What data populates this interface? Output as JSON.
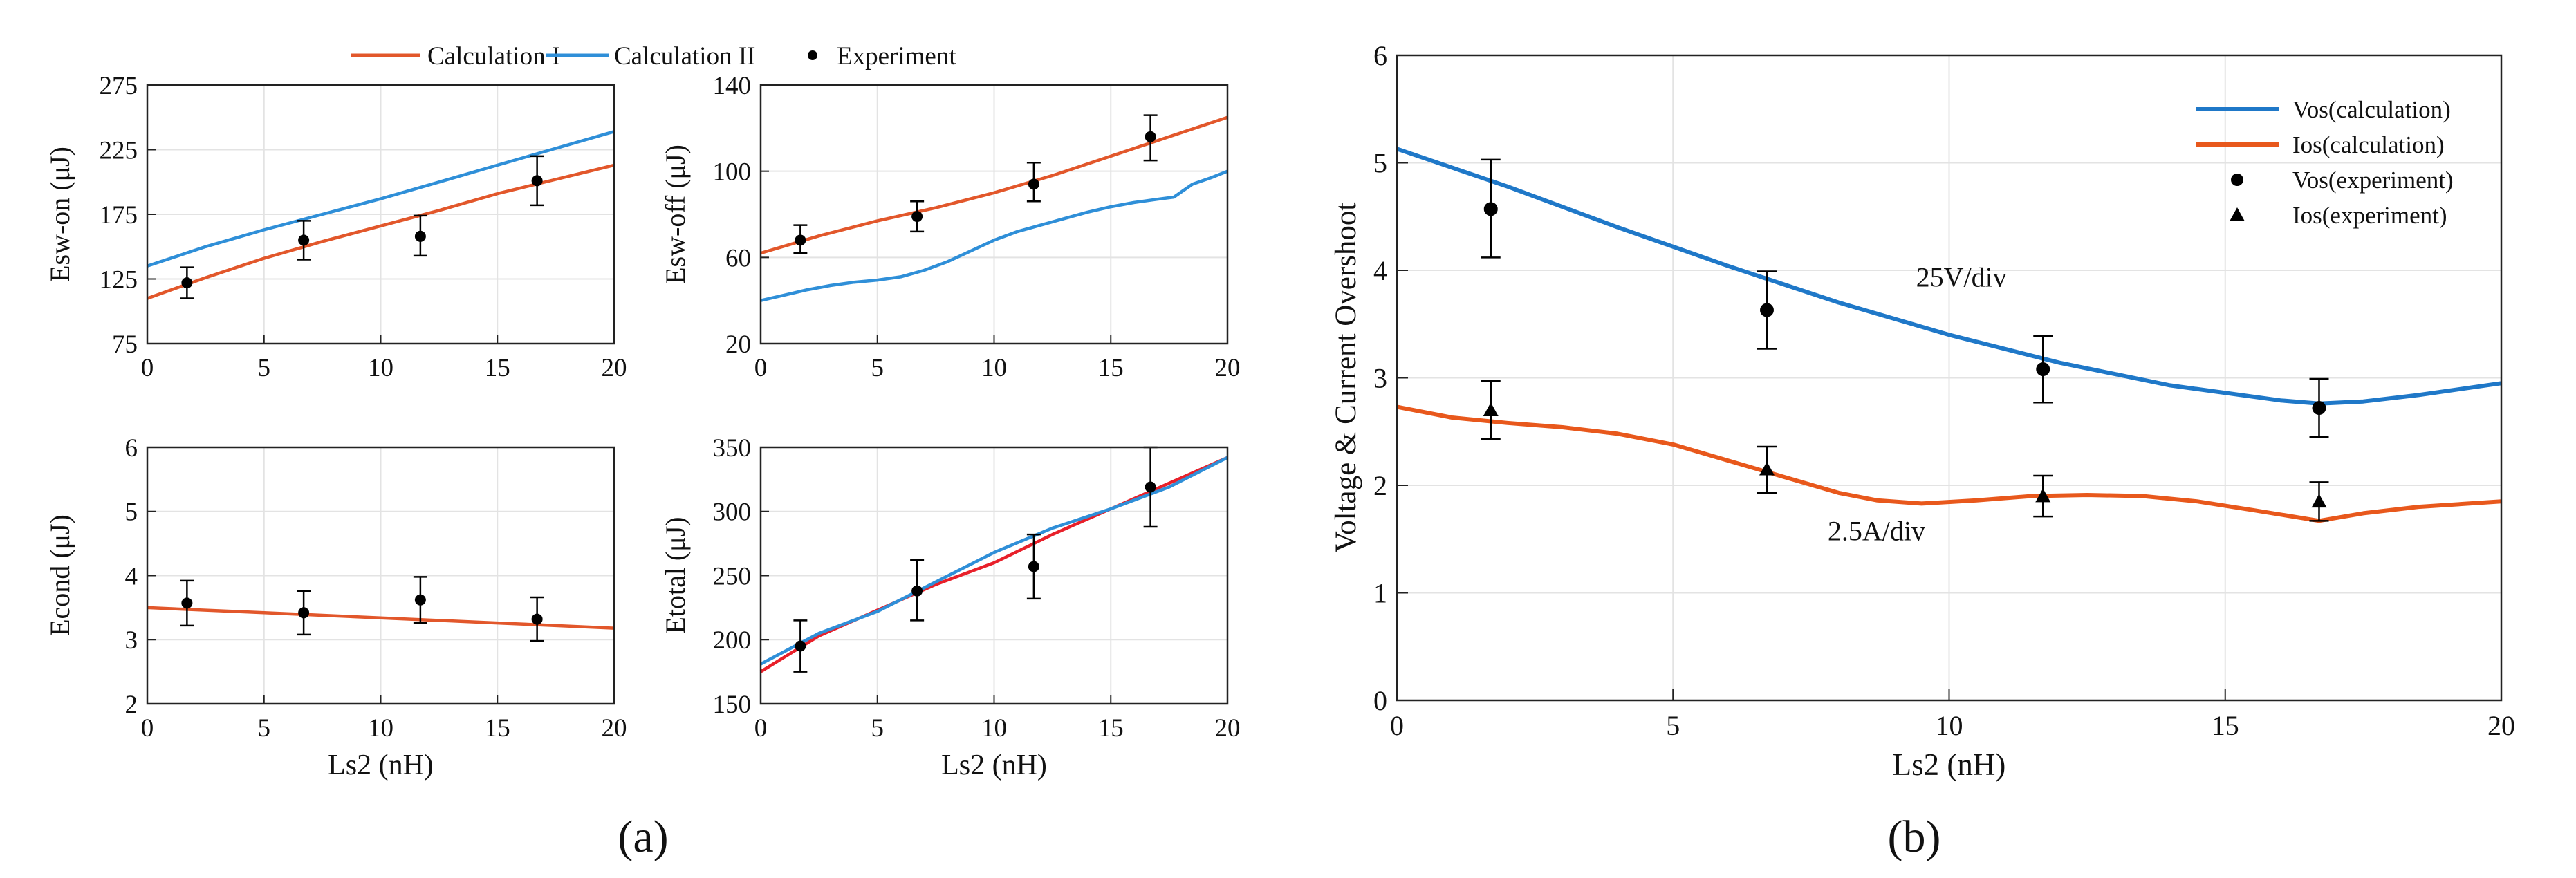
{
  "colors": {
    "calc1": "#E2572B",
    "calc2": "#2F8FD8",
    "vos": "#1F78C8",
    "ios": "#E8581C",
    "red": "#E8202A",
    "marker": "#000000",
    "grid": "#e3e3e3",
    "axis": "#222222"
  },
  "panel_labels": {
    "a": "(a)",
    "b": "(b)"
  },
  "panel_a_legend": [
    "Calculation I",
    "Calculation II",
    "Experiment"
  ],
  "chart_data": [
    {
      "id": "esw_on",
      "type": "line",
      "panel": "a",
      "ylabel": "Esw-on (μJ)",
      "xlabel": "",
      "xlim": [
        0,
        20
      ],
      "ylim": [
        75,
        275
      ],
      "xticks": [
        0,
        5,
        10,
        15,
        20
      ],
      "yticks": [
        75,
        125,
        175,
        225,
        275
      ],
      "series": [
        {
          "name": "Calculation I",
          "color_key": "calc1",
          "x": [
            0,
            2.5,
            5,
            7.5,
            10,
            12.5,
            15,
            17.5,
            20
          ],
          "y": [
            110,
            126,
            141,
            154,
            166,
            178,
            191,
            202,
            213
          ]
        },
        {
          "name": "Calculation II",
          "color_key": "calc2",
          "x": [
            0,
            2.5,
            5,
            7.5,
            10,
            12.5,
            15,
            17.5,
            20
          ],
          "y": [
            135,
            150,
            163,
            175,
            187,
            200,
            213,
            226,
            239
          ]
        }
      ],
      "experiment": [
        {
          "x": 1.7,
          "y": 122,
          "lo": 110,
          "hi": 134
        },
        {
          "x": 6.7,
          "y": 155,
          "lo": 140,
          "hi": 170
        },
        {
          "x": 11.7,
          "y": 158,
          "lo": 143,
          "hi": 174
        },
        {
          "x": 16.7,
          "y": 201,
          "lo": 182,
          "hi": 220
        }
      ]
    },
    {
      "id": "esw_off",
      "type": "line",
      "panel": "a",
      "ylabel": "Esw-off (μJ)",
      "xlabel": "",
      "xlim": [
        0,
        20
      ],
      "ylim": [
        20,
        140
      ],
      "xticks": [
        0,
        5,
        10,
        15,
        20
      ],
      "yticks": [
        20,
        60,
        100,
        140
      ],
      "series": [
        {
          "name": "Calculation I",
          "color_key": "calc1",
          "x": [
            0,
            2.5,
            5,
            7.5,
            10,
            12.5,
            15,
            17.5,
            20
          ],
          "y": [
            62,
            70,
            77,
            83,
            90,
            98,
            107,
            116,
            125
          ]
        },
        {
          "name": "Calculation II",
          "color_key": "calc2",
          "x": [
            0,
            1,
            2,
            3,
            4,
            5,
            6,
            7,
            8,
            9,
            10,
            11,
            12,
            13,
            14,
            15,
            16,
            17,
            17.7,
            18.5,
            19.3,
            20
          ],
          "y": [
            40,
            42.5,
            45,
            47,
            48.5,
            49.5,
            51,
            54,
            58,
            63,
            68,
            72,
            75,
            78,
            81,
            83.5,
            85.5,
            87,
            88,
            94,
            97,
            100
          ]
        }
      ],
      "experiment": [
        {
          "x": 1.7,
          "y": 68,
          "lo": 62,
          "hi": 75
        },
        {
          "x": 6.7,
          "y": 79,
          "lo": 72,
          "hi": 86
        },
        {
          "x": 11.7,
          "y": 94,
          "lo": 86,
          "hi": 104
        },
        {
          "x": 16.7,
          "y": 116,
          "lo": 105,
          "hi": 126
        }
      ]
    },
    {
      "id": "econd",
      "type": "line",
      "panel": "a",
      "ylabel": "Econd (μJ)",
      "xlabel": "Ls2 (nH)",
      "xlim": [
        0,
        20
      ],
      "ylim": [
        2,
        6
      ],
      "xticks": [
        0,
        5,
        10,
        15,
        20
      ],
      "yticks": [
        2,
        3,
        4,
        5,
        6
      ],
      "series": [
        {
          "name": "Calculation I",
          "color_key": "calc1",
          "x": [
            0,
            5,
            10,
            15,
            20
          ],
          "y": [
            3.5,
            3.42,
            3.34,
            3.26,
            3.18
          ]
        }
      ],
      "experiment": [
        {
          "x": 1.7,
          "y": 3.57,
          "lo": 3.22,
          "hi": 3.92
        },
        {
          "x": 6.7,
          "y": 3.42,
          "lo": 3.08,
          "hi": 3.76
        },
        {
          "x": 11.7,
          "y": 3.62,
          "lo": 3.26,
          "hi": 3.98
        },
        {
          "x": 16.7,
          "y": 3.32,
          "lo": 2.98,
          "hi": 3.66
        }
      ]
    },
    {
      "id": "etotal",
      "type": "line",
      "panel": "a",
      "ylabel": "Etotal (μJ)",
      "xlabel": "Ls2 (nH)",
      "xlim": [
        0,
        20
      ],
      "ylim": [
        150,
        350
      ],
      "xticks": [
        0,
        5,
        10,
        15,
        20
      ],
      "yticks": [
        150,
        200,
        250,
        300,
        350
      ],
      "series": [
        {
          "name": "Calculation I",
          "color_key": "red",
          "x": [
            0,
            2.5,
            5,
            7.5,
            10,
            12.5,
            15,
            17.5,
            20
          ],
          "y": [
            175,
            203,
            223,
            243,
            260,
            282,
            302,
            322,
            342
          ]
        },
        {
          "name": "Calculation II",
          "color_key": "calc2",
          "x": [
            0,
            2.5,
            5,
            7.5,
            10,
            12.5,
            15,
            17.5,
            20
          ],
          "y": [
            181,
            205,
            222,
            245,
            268,
            287,
            302,
            319,
            342
          ]
        }
      ],
      "experiment": [
        {
          "x": 1.7,
          "y": 195,
          "lo": 175,
          "hi": 215
        },
        {
          "x": 6.7,
          "y": 238,
          "lo": 215,
          "hi": 262
        },
        {
          "x": 11.7,
          "y": 257,
          "lo": 232,
          "hi": 282
        },
        {
          "x": 16.7,
          "y": 319,
          "lo": 288,
          "hi": 350
        }
      ]
    },
    {
      "id": "overshoot",
      "type": "line",
      "panel": "b",
      "ylabel": "Voltage & Current Overshoot",
      "xlabel": "Ls2 (nH)",
      "xlim": [
        0,
        20
      ],
      "ylim": [
        0,
        6
      ],
      "xticks": [
        0,
        5,
        10,
        15,
        20
      ],
      "yticks": [
        0,
        1,
        2,
        3,
        4,
        5,
        6
      ],
      "series": [
        {
          "name": "Vos(calculation)",
          "color_key": "vos",
          "x": [
            0,
            2,
            4,
            6,
            8,
            10,
            12,
            14,
            16,
            16.7,
            17.5,
            18.5,
            20
          ],
          "y": [
            5.13,
            4.78,
            4.4,
            4.04,
            3.7,
            3.4,
            3.14,
            2.93,
            2.79,
            2.76,
            2.78,
            2.84,
            2.95
          ]
        },
        {
          "name": "Ios(calculation)",
          "color_key": "ios",
          "x": [
            0,
            1,
            2,
            3,
            4,
            5,
            6,
            7,
            8,
            8.7,
            9.5,
            10.5,
            11.5,
            12.5,
            13.5,
            14.5,
            15.5,
            16.7,
            17.5,
            18.5,
            20
          ],
          "y": [
            2.73,
            2.63,
            2.58,
            2.54,
            2.48,
            2.38,
            2.23,
            2.08,
            1.93,
            1.86,
            1.83,
            1.86,
            1.9,
            1.91,
            1.9,
            1.85,
            1.77,
            1.67,
            1.74,
            1.8,
            1.85
          ]
        }
      ],
      "markers": [
        {
          "name": "Vos(experiment)",
          "shape": "circle",
          "points": [
            {
              "x": 1.7,
              "y": 4.57,
              "lo": 4.12,
              "hi": 5.03
            },
            {
              "x": 6.7,
              "y": 3.63,
              "lo": 3.27,
              "hi": 3.99
            },
            {
              "x": 11.7,
              "y": 3.08,
              "lo": 2.77,
              "hi": 3.39
            },
            {
              "x": 16.7,
              "y": 2.72,
              "lo": 2.45,
              "hi": 2.99
            }
          ]
        },
        {
          "name": "Ios(experiment)",
          "shape": "triangle",
          "points": [
            {
              "x": 1.7,
              "y": 2.7,
              "lo": 2.43,
              "hi": 2.97
            },
            {
              "x": 6.7,
              "y": 2.15,
              "lo": 1.93,
              "hi": 2.36
            },
            {
              "x": 11.7,
              "y": 1.9,
              "lo": 1.71,
              "hi": 2.09
            },
            {
              "x": 16.7,
              "y": 1.85,
              "lo": 1.67,
              "hi": 2.03
            }
          ]
        }
      ],
      "legend": [
        "Vos(calculation)",
        "Ios(calculation)",
        "Vos(experiment)",
        "Ios(experiment)"
      ],
      "annotations": [
        {
          "text": "25V/div",
          "x": 9.4,
          "y": 3.85
        },
        {
          "text": "2.5A/div",
          "x": 7.8,
          "y": 1.49
        }
      ]
    }
  ]
}
